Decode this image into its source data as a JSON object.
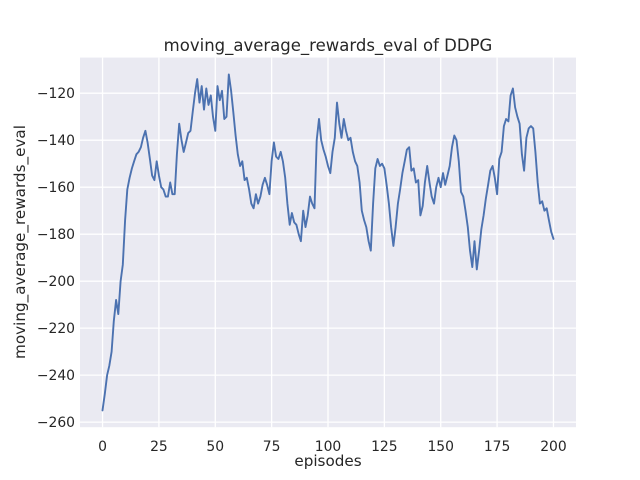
{
  "figure": {
    "title": "moving_average_rewards_eval of DDPG",
    "background_color": "#ffffff"
  },
  "chart_data": {
    "type": "line",
    "title": "moving_average_rewards_eval of DDPG",
    "xlabel": "episodes",
    "ylabel": "moving_average_rewards_eval",
    "xlim": [
      -10,
      210
    ],
    "ylim": [
      -262.15,
      -104.85
    ],
    "xticks": [
      0,
      25,
      50,
      75,
      100,
      125,
      150,
      175,
      200
    ],
    "yticks": [
      -120,
      -140,
      -160,
      -180,
      -200,
      -220,
      -240,
      -260
    ],
    "grid": true,
    "legend_position": "none",
    "style": {
      "axes_background": "#eaeaf2",
      "grid_color": "#ffffff",
      "line_color": "#4c72b0",
      "text_color": "#262626"
    },
    "series": [
      {
        "name": "moving_average_rewards_eval",
        "x_start": 0,
        "x_step": 1,
        "values": [
          -255,
          -248,
          -240,
          -236,
          -230,
          -217,
          -208,
          -214,
          -200,
          -193,
          -174,
          -161,
          -156,
          -152,
          -149,
          -146,
          -145,
          -143,
          -139,
          -136,
          -141,
          -148,
          -155,
          -157,
          -149,
          -155,
          -160,
          -161,
          -164,
          -164,
          -158,
          -163,
          -163,
          -146,
          -133,
          -140,
          -145,
          -141,
          -137,
          -136,
          -128,
          -120,
          -114,
          -124,
          -117,
          -127,
          -118,
          -125,
          -121,
          -130,
          -136,
          -117,
          -123,
          -119,
          -131,
          -130,
          -112,
          -119,
          -128,
          -138,
          -146,
          -151,
          -149,
          -157,
          -156,
          -161,
          -167,
          -169,
          -163,
          -167,
          -164,
          -159,
          -156,
          -159,
          -163,
          -149,
          -141,
          -147,
          -148,
          -145,
          -149,
          -156,
          -167,
          -176,
          -171,
          -175,
          -176,
          -180,
          -183,
          -170,
          -177,
          -172,
          -164,
          -167,
          -169,
          -140,
          -131,
          -140,
          -144,
          -147,
          -151,
          -154,
          -145,
          -139,
          -124,
          -133,
          -139,
          -131,
          -136,
          -140,
          -139,
          -145,
          -149,
          -151,
          -158,
          -170,
          -174,
          -177,
          -183,
          -187,
          -167,
          -152,
          -148,
          -151,
          -150,
          -152,
          -159,
          -167,
          -177,
          -185,
          -177,
          -167,
          -161,
          -154,
          -149,
          -144,
          -143,
          -153,
          -152,
          -158,
          -157,
          -172,
          -168,
          -158,
          -151,
          -158,
          -164,
          -167,
          -160,
          -156,
          -160,
          -154,
          -159,
          -155,
          -151,
          -143,
          -138,
          -140,
          -149,
          -162,
          -164,
          -170,
          -177,
          -187,
          -194,
          -183,
          -195,
          -187,
          -178,
          -172,
          -165,
          -159,
          -153,
          -151,
          -156,
          -163,
          -148,
          -145,
          -134,
          -131,
          -132,
          -121,
          -118,
          -126,
          -130,
          -133,
          -146,
          -153,
          -139,
          -135,
          -134,
          -135,
          -145,
          -158,
          -167,
          -166,
          -170,
          -169,
          -174,
          -179,
          -182
        ]
      }
    ]
  }
}
